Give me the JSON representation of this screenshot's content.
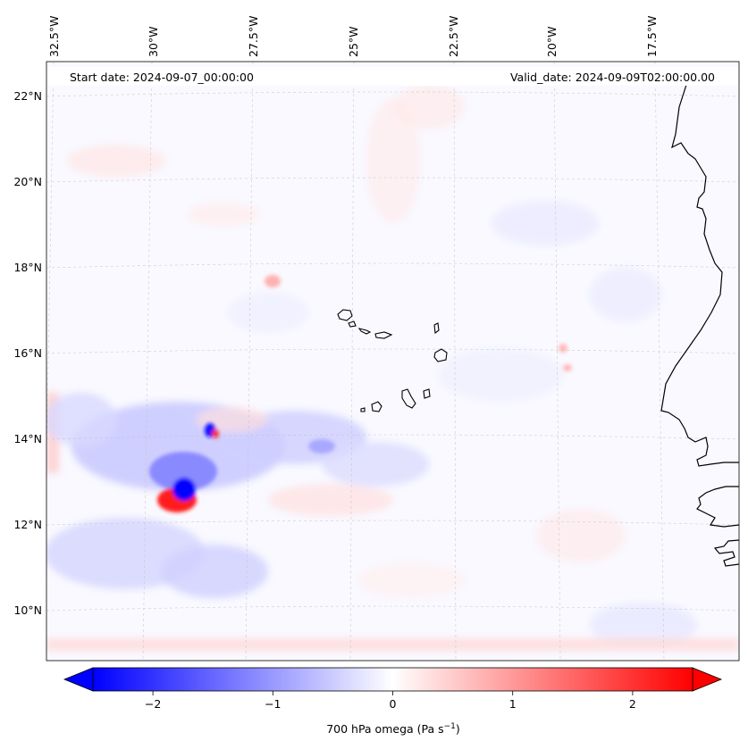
{
  "header": {
    "start_date": "Start date: 2024-09-07_00:00:00",
    "valid_date": "Valid_date: 2024-09-09T02:00:00.00"
  },
  "map": {
    "lon_labels": [
      "32.5°W",
      "30°W",
      "27.5°W",
      "25°W",
      "22.5°W",
      "20°W",
      "17.5°W"
    ],
    "lat_labels": [
      "22°N",
      "20°N",
      "18°N",
      "16°N",
      "14°N",
      "12°N",
      "10°N"
    ],
    "gridlines": true
  },
  "colorbar": {
    "ticks": [
      "−2",
      "−1",
      "0",
      "1",
      "2"
    ],
    "tick_values": [
      -2,
      -1,
      0,
      1,
      2
    ],
    "range": [
      -2.5,
      2.5
    ],
    "extend": "both",
    "colormap": "bwr",
    "low_color": "#0000ff",
    "mid_color": "#ffffff",
    "high_color": "#ff0000",
    "label_main": "700 hPa omega (Pa s",
    "label_exp": "−1",
    "label_close": ")"
  }
}
